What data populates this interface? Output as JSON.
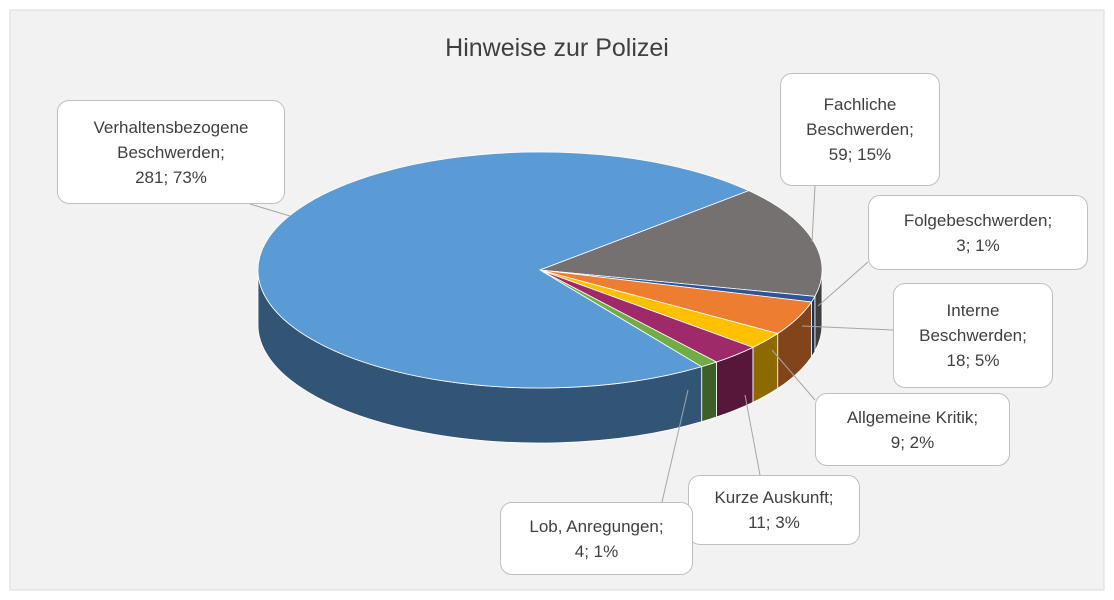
{
  "chart_data": {
    "type": "pie",
    "title": "Hinweise zur Polizei",
    "categories": [
      "Verhaltensbezogene Beschwerden;",
      "Fachliche Beschwerden;",
      "Folgebeschwerden;",
      "Interne Beschwerden;",
      "Allgemeine Kritik;",
      "Kurze Auskunft;",
      "Lob, Anregungen;"
    ],
    "values": [
      281,
      59,
      3,
      18,
      9,
      11,
      4
    ],
    "value_labels": [
      "281; 73%",
      "59; 15%",
      "3; 1%",
      "18; 5%",
      "9; 2%",
      "11; 3%",
      "4; 1%"
    ],
    "colors": [
      "#5b9bd5",
      "#767171",
      "#2f5597",
      "#ed7d31",
      "#ffc000",
      "#9e2a6a",
      "#70ad47"
    ]
  }
}
